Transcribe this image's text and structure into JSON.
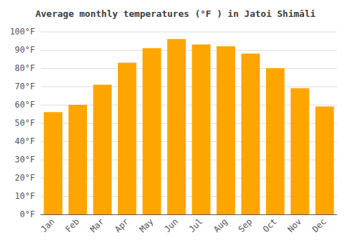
{
  "chart_data": {
    "type": "bar",
    "title": "Average monthly temperatures (°F ) in Jatoi Shimāli",
    "categories": [
      "Jan",
      "Feb",
      "Mar",
      "Apr",
      "May",
      "Jun",
      "Jul",
      "Aug",
      "Sep",
      "Oct",
      "Nov",
      "Dec"
    ],
    "values": [
      56,
      60,
      71,
      83,
      91,
      96,
      93,
      92,
      88,
      80,
      69,
      59
    ],
    "color": "#FFA500",
    "ylim": [
      0,
      100
    ],
    "yticks": [
      {
        "value": 0,
        "label": "0°F"
      },
      {
        "value": 10,
        "label": "10°F"
      },
      {
        "value": 20,
        "label": "20°F"
      },
      {
        "value": 30,
        "label": "30°F"
      },
      {
        "value": 40,
        "label": "40°F"
      },
      {
        "value": 50,
        "label": "50°F"
      },
      {
        "value": 60,
        "label": "60°F"
      },
      {
        "value": 70,
        "label": "70°F"
      },
      {
        "value": 80,
        "label": "80°F"
      },
      {
        "value": 90,
        "label": "90°F"
      },
      {
        "value": 100,
        "label": "100°F"
      }
    ],
    "grid": true
  }
}
